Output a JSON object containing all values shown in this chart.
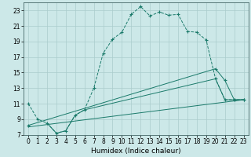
{
  "xlabel": "Humidex (Indice chaleur)",
  "bg_color": "#cce8e8",
  "line_color": "#1a7a6a",
  "grid_color": "#aacccc",
  "xlim": [
    -0.5,
    23.5
  ],
  "ylim": [
    7,
    24
  ],
  "xticks": [
    0,
    1,
    2,
    3,
    4,
    5,
    6,
    7,
    8,
    9,
    10,
    11,
    12,
    13,
    14,
    15,
    16,
    17,
    18,
    19,
    20,
    21,
    22,
    23
  ],
  "yticks": [
    7,
    9,
    11,
    13,
    15,
    17,
    19,
    21,
    23
  ],
  "line1_x": [
    0,
    1,
    2,
    3,
    4,
    5,
    6,
    7,
    8,
    9,
    10,
    11,
    12,
    13,
    14,
    15,
    16,
    17,
    18,
    19,
    20,
    21,
    22,
    23
  ],
  "line1_y": [
    11,
    9,
    8.5,
    7.2,
    7.5,
    9.5,
    10.2,
    13.0,
    17.5,
    19.3,
    20.2,
    22.5,
    23.5,
    22.3,
    22.8,
    22.4,
    22.5,
    20.3,
    20.2,
    19.2,
    14.2,
    11.5,
    11.5,
    11.5
  ],
  "line2_x": [
    0,
    20,
    21,
    22,
    23
  ],
  "line2_y": [
    8.2,
    15.5,
    14.0,
    11.5,
    11.5
  ],
  "line3_x": [
    0,
    23
  ],
  "line3_y": [
    8.0,
    11.5
  ],
  "line4_x": [
    2,
    3,
    4,
    5,
    6,
    20,
    21,
    22,
    23
  ],
  "line4_y": [
    8.5,
    7.2,
    7.5,
    9.5,
    10.2,
    14.2,
    11.5,
    11.5,
    11.5
  ],
  "tick_labelsize": 5.5,
  "xlabel_fontsize": 6.5
}
